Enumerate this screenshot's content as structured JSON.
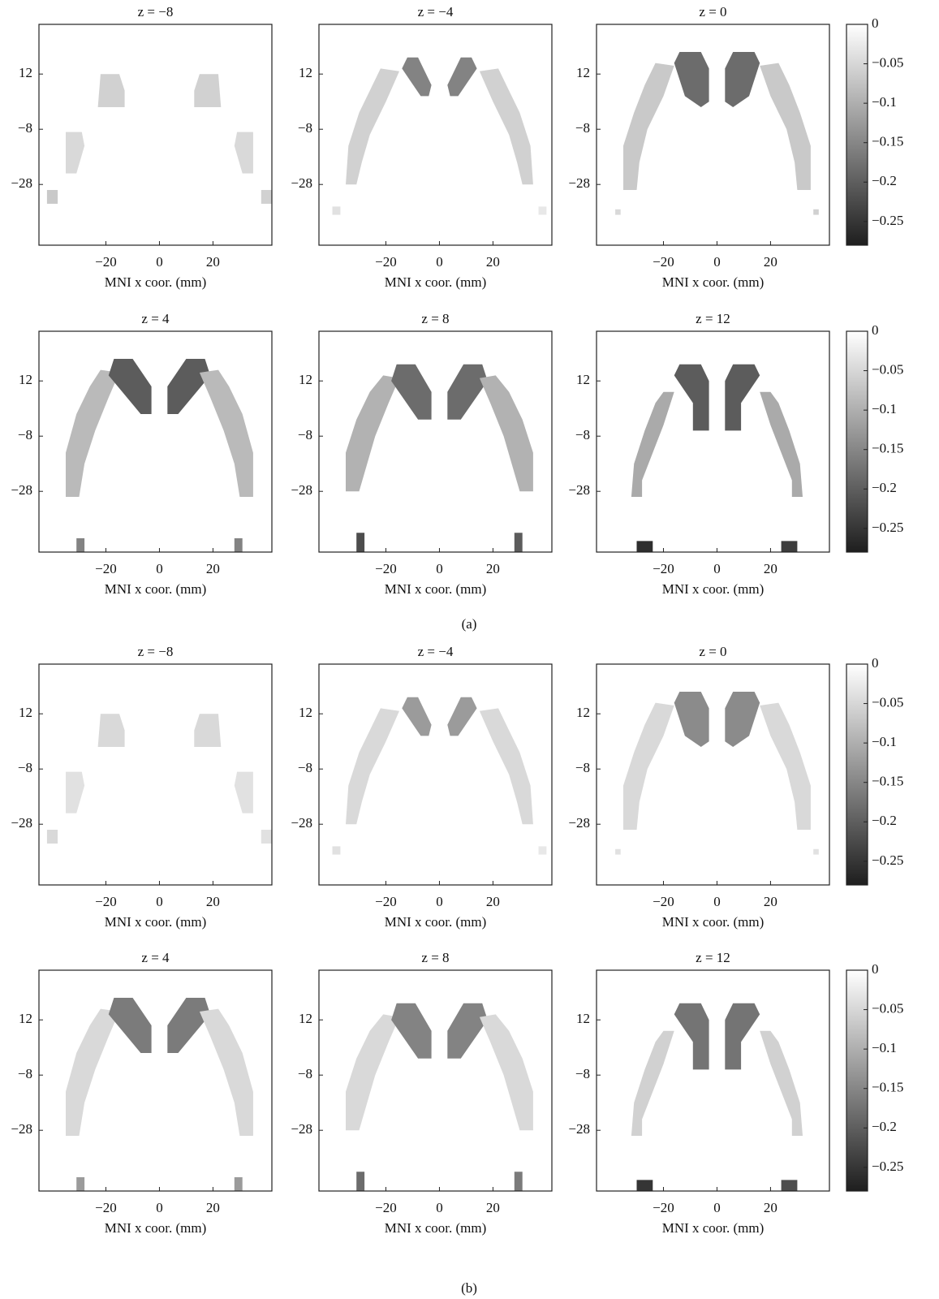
{
  "captions": [
    "(a)",
    "(b)"
  ],
  "chart_data": [
    {
      "type": "heatmap",
      "cmap": "gray",
      "title": "z = −8",
      "xlabel": "MNI x coor. (mm)",
      "xlim": [
        -45,
        42
      ],
      "ylim": [
        -50,
        30
      ],
      "xticks": [
        {
          "value": -20,
          "label": "−20"
        },
        0,
        20
      ],
      "yticks": [
        12,
        {
          "value": -8,
          "label": "−8"
        },
        {
          "value": -28,
          "label": "−28"
        }
      ],
      "values": [
        -0.04,
        -0.05,
        -0.05,
        -0.04,
        -0.06,
        -0.05
      ]
    },
    {
      "type": "heatmap",
      "cmap": "gray",
      "title": "z = −4",
      "xlabel": "MNI x coor. (mm)",
      "xlim": [
        -45,
        42
      ],
      "ylim": [
        -50,
        30
      ],
      "xticks": [
        {
          "value": -20,
          "label": "−20"
        },
        0,
        20
      ],
      "yticks": [
        12,
        {
          "value": -8,
          "label": "−8"
        },
        {
          "value": -28,
          "label": "−28"
        }
      ],
      "values": [
        -0.05,
        -0.15,
        -0.15,
        -0.05,
        -0.03,
        -0.02
      ]
    },
    {
      "type": "heatmap",
      "cmap": "gray",
      "title": "z = 0",
      "xlabel": "MNI x coor. (mm)",
      "xlim": [
        -45,
        42
      ],
      "ylim": [
        -50,
        30
      ],
      "xticks": [
        {
          "value": -20,
          "label": "−20"
        },
        0,
        20
      ],
      "yticks": [
        12,
        {
          "value": -8,
          "label": "−8"
        },
        {
          "value": -28,
          "label": "−28"
        }
      ],
      "values": [
        -0.06,
        -0.18,
        -0.18,
        -0.06,
        -0.04,
        -0.05
      ],
      "zlim": [
        -0.28,
        0
      ],
      "zticks": [
        0,
        {
          "value": -0.05,
          "label": "−0.05"
        },
        {
          "value": -0.1,
          "label": "−0.1"
        },
        {
          "value": -0.15,
          "label": "−0.15"
        },
        {
          "value": -0.2,
          "label": "−0.2"
        },
        {
          "value": -0.25,
          "label": "−0.25"
        }
      ]
    },
    {
      "type": "heatmap",
      "cmap": "gray",
      "title": "z = 4",
      "xlabel": "MNI x coor. (mm)",
      "xlim": [
        -45,
        42
      ],
      "ylim": [
        -50,
        30
      ],
      "xticks": [
        {
          "value": -20,
          "label": "−20"
        },
        0,
        20
      ],
      "yticks": [
        12,
        {
          "value": -8,
          "label": "−8"
        },
        {
          "value": -28,
          "label": "−28"
        }
      ],
      "values": [
        -0.08,
        -0.2,
        -0.2,
        -0.08,
        -0.15,
        -0.15
      ]
    },
    {
      "type": "heatmap",
      "cmap": "gray",
      "title": "z = 8",
      "xlabel": "MNI x coor. (mm)",
      "xlim": [
        -45,
        42
      ],
      "ylim": [
        -50,
        30
      ],
      "xticks": [
        {
          "value": -20,
          "label": "−20"
        },
        0,
        20
      ],
      "yticks": [
        12,
        {
          "value": -8,
          "label": "−8"
        },
        {
          "value": -28,
          "label": "−28"
        }
      ],
      "values": [
        -0.09,
        -0.18,
        -0.18,
        -0.09,
        -0.22,
        -0.2
      ]
    },
    {
      "type": "heatmap",
      "cmap": "gray",
      "title": "z = 12",
      "xlabel": "MNI x coor. (mm)",
      "xlim": [
        -45,
        42
      ],
      "ylim": [
        -50,
        30
      ],
      "xticks": [
        {
          "value": -20,
          "label": "−20"
        },
        0,
        20
      ],
      "yticks": [
        12,
        {
          "value": -8,
          "label": "−8"
        },
        {
          "value": -28,
          "label": "−28"
        }
      ],
      "values": [
        -0.1,
        -0.2,
        -0.2,
        -0.1,
        -0.26,
        -0.24
      ],
      "zlim": [
        -0.28,
        0
      ],
      "zticks": [
        0,
        {
          "value": -0.05,
          "label": "−0.05"
        },
        {
          "value": -0.1,
          "label": "−0.1"
        },
        {
          "value": -0.15,
          "label": "−0.15"
        },
        {
          "value": -0.2,
          "label": "−0.2"
        },
        {
          "value": -0.25,
          "label": "−0.25"
        }
      ]
    },
    {
      "type": "heatmap",
      "cmap": "gray",
      "title": "z = −8",
      "xlabel": "MNI x coor. (mm)",
      "xlim": [
        -45,
        42
      ],
      "ylim": [
        -50,
        30
      ],
      "xticks": [
        {
          "value": -20,
          "label": "−20"
        },
        0,
        20
      ],
      "yticks": [
        12,
        {
          "value": -8,
          "label": "−8"
        },
        {
          "value": -28,
          "label": "−28"
        }
      ],
      "values": [
        -0.03,
        -0.04,
        -0.04,
        -0.03,
        -0.04,
        -0.03
      ]
    },
    {
      "type": "heatmap",
      "cmap": "gray",
      "title": "z = −4",
      "xlabel": "MNI x coor. (mm)",
      "xlim": [
        -45,
        42
      ],
      "ylim": [
        -50,
        30
      ],
      "xticks": [
        {
          "value": -20,
          "label": "−20"
        },
        0,
        20
      ],
      "yticks": [
        12,
        {
          "value": -8,
          "label": "−8"
        },
        {
          "value": -28,
          "label": "−28"
        }
      ],
      "values": [
        -0.04,
        -0.12,
        -0.12,
        -0.04,
        -0.03,
        -0.02
      ]
    },
    {
      "type": "heatmap",
      "cmap": "gray",
      "title": "z = 0",
      "xlabel": "MNI x coor. (mm)",
      "xlim": [
        -45,
        42
      ],
      "ylim": [
        -50,
        30
      ],
      "xticks": [
        {
          "value": -20,
          "label": "−20"
        },
        0,
        20
      ],
      "yticks": [
        12,
        {
          "value": -8,
          "label": "−8"
        },
        {
          "value": -28,
          "label": "−28"
        }
      ],
      "values": [
        -0.04,
        -0.14,
        -0.14,
        -0.04,
        -0.03,
        -0.03
      ],
      "zlim": [
        -0.28,
        0
      ],
      "zticks": [
        0,
        {
          "value": -0.05,
          "label": "−0.05"
        },
        {
          "value": -0.1,
          "label": "−0.1"
        },
        {
          "value": -0.15,
          "label": "−0.15"
        },
        {
          "value": -0.2,
          "label": "−0.2"
        },
        {
          "value": -0.25,
          "label": "−0.25"
        }
      ]
    },
    {
      "type": "heatmap",
      "cmap": "gray",
      "title": "z = 4",
      "xlabel": "MNI x coor. (mm)",
      "xlim": [
        -45,
        42
      ],
      "ylim": [
        -50,
        30
      ],
      "xticks": [
        {
          "value": -20,
          "label": "−20"
        },
        0,
        20
      ],
      "yticks": [
        12,
        {
          "value": -8,
          "label": "−8"
        },
        {
          "value": -28,
          "label": "−28"
        }
      ],
      "values": [
        -0.04,
        -0.16,
        -0.16,
        -0.04,
        -0.12,
        -0.12
      ]
    },
    {
      "type": "heatmap",
      "cmap": "gray",
      "title": "z = 8",
      "xlabel": "MNI x coor. (mm)",
      "xlim": [
        -45,
        42
      ],
      "ylim": [
        -50,
        30
      ],
      "xticks": [
        {
          "value": -20,
          "label": "−20"
        },
        0,
        20
      ],
      "yticks": [
        12,
        {
          "value": -8,
          "label": "−8"
        },
        {
          "value": -28,
          "label": "−28"
        }
      ],
      "values": [
        -0.04,
        -0.15,
        -0.15,
        -0.04,
        -0.18,
        -0.16
      ]
    },
    {
      "type": "heatmap",
      "cmap": "gray",
      "title": "z = 12",
      "xlabel": "MNI x coor. (mm)",
      "xlim": [
        -45,
        42
      ],
      "ylim": [
        -50,
        30
      ],
      "xticks": [
        {
          "value": -20,
          "label": "−20"
        },
        0,
        20
      ],
      "yticks": [
        12,
        {
          "value": -8,
          "label": "−8"
        },
        {
          "value": -28,
          "label": "−28"
        }
      ],
      "values": [
        -0.05,
        -0.17,
        -0.17,
        -0.05,
        -0.25,
        -0.22
      ],
      "zlim": [
        -0.28,
        0
      ],
      "zticks": [
        0,
        {
          "value": -0.05,
          "label": "−0.05"
        },
        {
          "value": -0.1,
          "label": "−0.1"
        },
        {
          "value": -0.15,
          "label": "−0.15"
        },
        {
          "value": -0.2,
          "label": "−0.2"
        },
        {
          "value": -0.25,
          "label": "−0.25"
        }
      ]
    }
  ]
}
